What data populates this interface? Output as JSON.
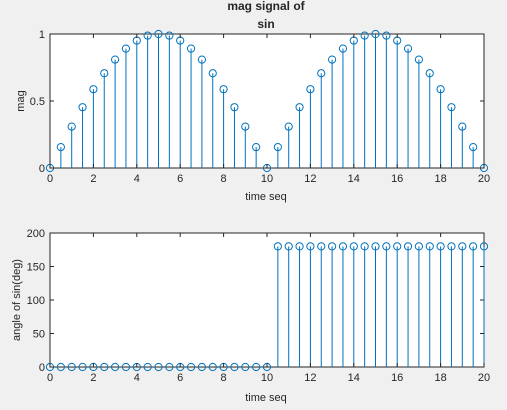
{
  "chart_data": [
    {
      "type": "stem",
      "title_lines": [
        "mag signal of",
        "sin"
      ],
      "xlabel": "time seq",
      "ylabel": "mag",
      "xlim": [
        0,
        20
      ],
      "ylim": [
        0,
        1
      ],
      "xticks": [
        "0",
        "2",
        "4",
        "6",
        "8",
        "10",
        "12",
        "14",
        "16",
        "18",
        "20"
      ],
      "yticks": [
        "0",
        "0.5",
        "1"
      ],
      "x": [
        0,
        0.5,
        1,
        1.5,
        2,
        2.5,
        3,
        3.5,
        4,
        4.5,
        5,
        5.5,
        6,
        6.5,
        7,
        7.5,
        8,
        8.5,
        9,
        9.5,
        10,
        10.5,
        11,
        11.5,
        12,
        12.5,
        13,
        13.5,
        14,
        14.5,
        15,
        15.5,
        16,
        16.5,
        17,
        17.5,
        18,
        18.5,
        19,
        19.5,
        20
      ],
      "y": [
        0,
        0.156,
        0.309,
        0.454,
        0.588,
        0.707,
        0.809,
        0.891,
        0.951,
        0.988,
        1.0,
        0.988,
        0.951,
        0.891,
        0.809,
        0.707,
        0.588,
        0.454,
        0.309,
        0.156,
        0.0,
        0.156,
        0.309,
        0.454,
        0.588,
        0.707,
        0.809,
        0.891,
        0.951,
        0.988,
        1.0,
        0.988,
        0.951,
        0.891,
        0.809,
        0.707,
        0.588,
        0.454,
        0.309,
        0.156,
        0.0
      ],
      "grid": false
    },
    {
      "type": "stem",
      "xlabel": "time seq",
      "ylabel": "angle of sin(deg)",
      "xlim": [
        0,
        20
      ],
      "ylim": [
        0,
        200
      ],
      "xticks": [
        "0",
        "2",
        "4",
        "6",
        "8",
        "10",
        "12",
        "14",
        "16",
        "18",
        "20"
      ],
      "yticks": [
        "0",
        "50",
        "100",
        "150",
        "200"
      ],
      "x": [
        0,
        0.5,
        1,
        1.5,
        2,
        2.5,
        3,
        3.5,
        4,
        4.5,
        5,
        5.5,
        6,
        6.5,
        7,
        7.5,
        8,
        8.5,
        9,
        9.5,
        10,
        10.5,
        11,
        11.5,
        12,
        12.5,
        13,
        13.5,
        14,
        14.5,
        15,
        15.5,
        16,
        16.5,
        17,
        17.5,
        18,
        18.5,
        19,
        19.5,
        20
      ],
      "y": [
        0,
        0,
        0,
        0,
        0,
        0,
        0,
        0,
        0,
        0,
        0,
        0,
        0,
        0,
        0,
        0,
        0,
        0,
        0,
        0,
        0,
        180,
        180,
        180,
        180,
        180,
        180,
        180,
        180,
        180,
        180,
        180,
        180,
        180,
        180,
        180,
        180,
        180,
        180,
        180,
        180
      ],
      "grid": false
    }
  ],
  "colors": {
    "stem": "#0072bd",
    "axis": "#262626",
    "plot_bg": "#ffffff",
    "figure_bg": "#f0f0f0"
  }
}
